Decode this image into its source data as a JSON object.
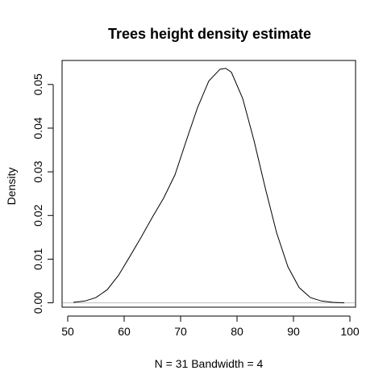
{
  "chart_data": {
    "type": "line",
    "title": "Trees height density estimate",
    "xlabel": "N = 31   Bandwidth = 4",
    "ylabel": "Density",
    "xlim": [
      49,
      101
    ],
    "ylim": [
      -0.001,
      0.0555
    ],
    "x_ticks": [
      "50",
      "60",
      "70",
      "80",
      "90",
      "100"
    ],
    "y_ticks": [
      "0.00",
      "0.01",
      "0.02",
      "0.03",
      "0.04",
      "0.05"
    ],
    "baseline": 0,
    "grid": false,
    "legend": "none",
    "series": [
      {
        "x": [
          51,
          53,
          55,
          57,
          59,
          61,
          63,
          65,
          67,
          69,
          71,
          73,
          75,
          77,
          78,
          79,
          81,
          83,
          85,
          87,
          89,
          91,
          93,
          95,
          97,
          99
        ],
        "y": [
          0.0001,
          0.0004,
          0.0012,
          0.003,
          0.0063,
          0.0106,
          0.015,
          0.0196,
          0.024,
          0.0293,
          0.0371,
          0.0447,
          0.0508,
          0.0535,
          0.0537,
          0.0528,
          0.0468,
          0.0372,
          0.0263,
          0.0161,
          0.0083,
          0.0035,
          0.0012,
          0.0004,
          0.0001,
          0.0
        ],
        "color": "#000000"
      }
    ],
    "baseline_color": "#bebebe"
  }
}
